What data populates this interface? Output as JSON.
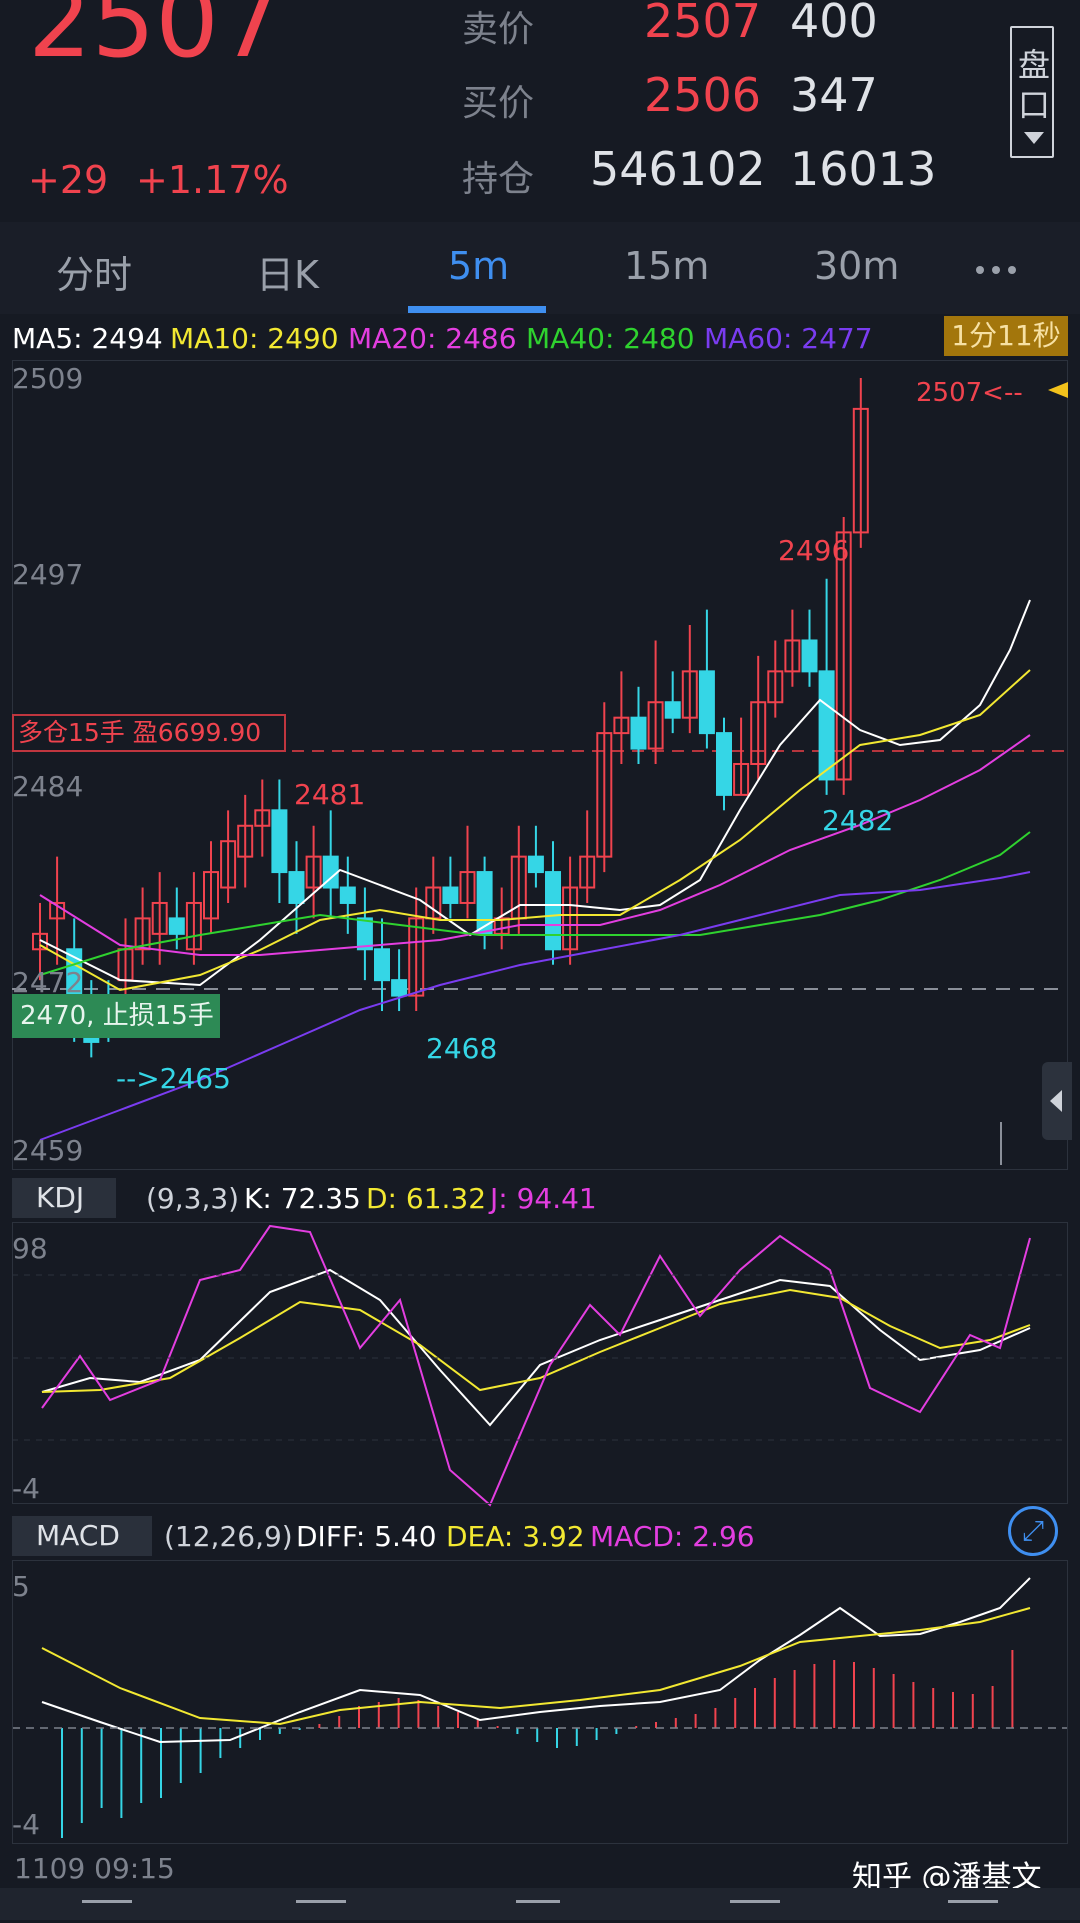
{
  "header": {
    "last_price": "2507",
    "change": "+29",
    "change_pct": "+1.17%",
    "quotes": [
      {
        "label": "卖价",
        "price": "2507",
        "volume": "400"
      },
      {
        "label": "买价",
        "price": "2506",
        "volume": "347"
      },
      {
        "label": "持仓",
        "price": "546102",
        "volume": "16013"
      }
    ],
    "depth_button": [
      "盘",
      "口"
    ]
  },
  "tabs": [
    "分时",
    "日K",
    "5m",
    "15m",
    "30m"
  ],
  "active_tab": "5m",
  "main_chart": {
    "ma_labels": [
      "MA5: 2494",
      "MA10: 2490",
      "MA20: 2486",
      "MA40: 2480",
      "MA60: 2477"
    ],
    "ma_colors": [
      "#ffffff",
      "#f2e832",
      "#e33ee0",
      "#2fd22f",
      "#7a3cf0"
    ],
    "timer": "1分11秒",
    "y_axis": [
      "2509",
      "2497",
      "2484",
      "2472",
      "2459"
    ],
    "annotations": {
      "current": "2507<--",
      "high1": "2496",
      "high2": "2481",
      "low1": "2482",
      "low2": "2468",
      "low3": "-->2465"
    },
    "position_tag": "多仓15手   盈6699.90",
    "stop_tag": "2470, 止损15手"
  },
  "kdj": {
    "name": "KDJ",
    "params": "(9,3,3)",
    "k": "K: 72.35",
    "d": "D: 61.32",
    "j": "J: 94.41",
    "y_axis": [
      "98",
      "-4"
    ]
  },
  "macd": {
    "name": "MACD",
    "params": "(12,26,9)",
    "diff": "DIFF: 5.40",
    "dea": "DEA: 3.92",
    "macd": "MACD: 2.96",
    "y_axis": [
      "5",
      "-4"
    ]
  },
  "footer": {
    "time": "1109 09:15",
    "watermark": "知乎 @潘基文"
  },
  "colors": {
    "up": "#f0434e",
    "down": "#35d6e6",
    "accent": "#3f8ff0"
  }
}
